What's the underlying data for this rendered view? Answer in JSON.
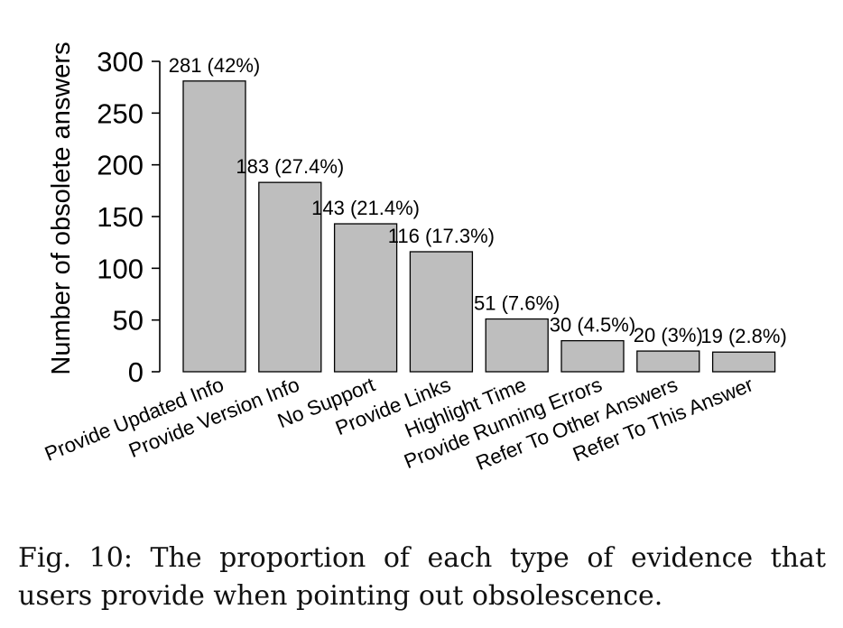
{
  "chart_data": {
    "type": "bar",
    "title": "",
    "xlabel": "",
    "ylabel": "Number of obsolete answers",
    "categories": [
      "Provide Updated Info",
      "Provide Version Info",
      "No Support",
      "Provide Links",
      "Highlight Time",
      "Provide Running Errors",
      "Refer To Other Answers",
      "Refer To This Answer"
    ],
    "values": [
      281,
      183,
      143,
      116,
      51,
      30,
      20,
      19
    ],
    "data_labels": [
      "281 (42%)",
      "183 (27.4%)",
      "143 (21.4%)",
      "116 (17.3%)",
      "51 (7.6%)",
      "30 (4.5%)",
      "20 (3%)",
      "19 (2.8%)"
    ],
    "ylim": [
      0,
      300
    ],
    "yticks": [
      0,
      50,
      100,
      150,
      200,
      250,
      300
    ],
    "grid": false,
    "bar_color": "#bebebe",
    "bar_edge_color": "#000000"
  },
  "caption": "Fig. 10: The proportion of each type of evidence that users provide when pointing out obsolescence."
}
